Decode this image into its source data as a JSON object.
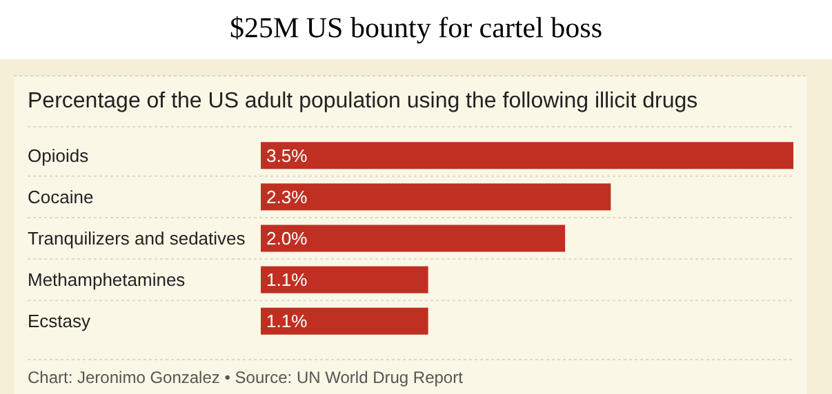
{
  "chart_data": {
    "type": "bar",
    "orientation": "horizontal",
    "title": "$25M US bounty for cartel boss",
    "subtitle": "Percentage of the US adult population using the following illicit drugs",
    "categories": [
      "Opioids",
      "Cocaine",
      "Tranquilizers and sedatives",
      "Methamphetamines",
      "Ecstasy"
    ],
    "values": [
      3.5,
      2.3,
      2.0,
      1.1,
      1.1
    ],
    "value_labels": [
      "3.5%",
      "2.3%",
      "2.0%",
      "1.1%",
      "1.1%"
    ],
    "color": "#bf3022",
    "annotations": [
      "Chart: Jeronimo Gonzalez • Source: UN World Drug Report"
    ]
  }
}
